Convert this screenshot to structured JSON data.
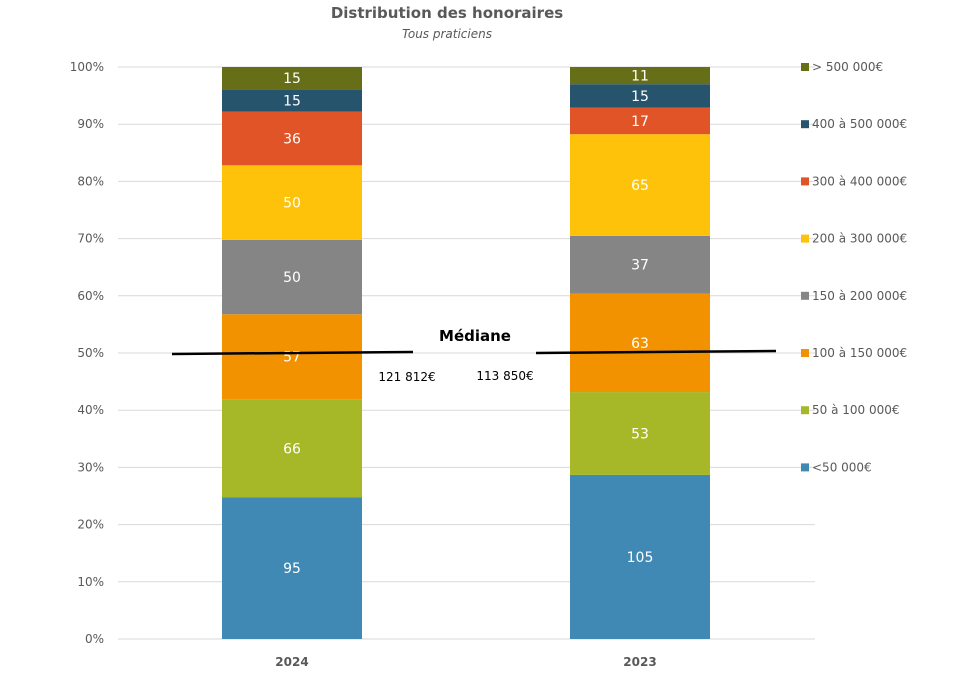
{
  "chart_data": {
    "type": "bar",
    "stacked": "percent",
    "title": "Distribution des honoraires",
    "subtitle": "Tous praticiens",
    "xlabel": "",
    "ylabel": "",
    "ylim": [
      0,
      100
    ],
    "yticks": [
      "0%",
      "10%",
      "20%",
      "30%",
      "40%",
      "50%",
      "60%",
      "70%",
      "80%",
      "90%",
      "100%"
    ],
    "grid": true,
    "legend_position": "right",
    "categories": [
      "2024",
      "2023"
    ],
    "series": [
      {
        "name": "<50 000€",
        "color": "#4189B5",
        "values": [
          95,
          105
        ]
      },
      {
        "name": "50 à 100 000€",
        "color": "#A6B828",
        "values": [
          66,
          53
        ]
      },
      {
        "name": "100 à 150 000€",
        "color": "#F39200",
        "values": [
          57,
          63
        ]
      },
      {
        "name": "150 à 200 000€",
        "color": "#858585",
        "values": [
          50,
          37
        ]
      },
      {
        "name": "200 à 300 000€",
        "color": "#FFC20A",
        "values": [
          50,
          65
        ]
      },
      {
        "name": "300 à 400 000€",
        "color": "#E05427",
        "values": [
          36,
          17
        ]
      },
      {
        "name": "400 à 500 000€",
        "color": "#26546C",
        "values": [
          15,
          15
        ]
      },
      {
        "name": "> 500 000€",
        "color": "#666F18",
        "values": [
          15,
          11
        ]
      }
    ],
    "annotations": {
      "median_label": "Médiane",
      "median_level_percent": 50,
      "median_values": [
        "121 812€",
        "113 850€"
      ]
    }
  }
}
